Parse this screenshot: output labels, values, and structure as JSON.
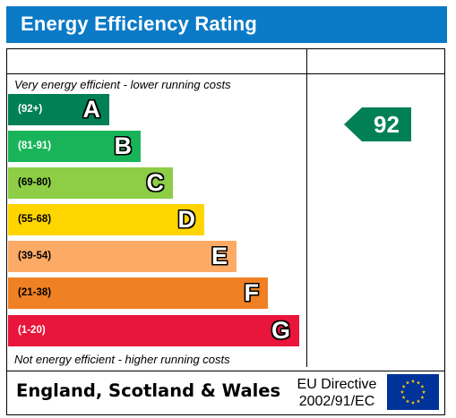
{
  "title": "Energy Efficiency Rating",
  "captions": {
    "top": "Very energy efficient - lower running costs",
    "bottom": "Not energy efficient - higher running costs"
  },
  "bands": [
    {
      "range": "(92+)",
      "letter": "A",
      "color": "#008054"
    },
    {
      "range": "(81-91)",
      "letter": "B",
      "color": "#19b459"
    },
    {
      "range": "(69-80)",
      "letter": "C",
      "color": "#8dce46"
    },
    {
      "range": "(55-68)",
      "letter": "D",
      "color": "#ffd500"
    },
    {
      "range": "(39-54)",
      "letter": "E",
      "color": "#fcaa65"
    },
    {
      "range": "(21-38)",
      "letter": "F",
      "color": "#ef8023"
    },
    {
      "range": "(1-20)",
      "letter": "G",
      "color": "#e9153b"
    }
  ],
  "current_rating": {
    "value": "92",
    "band": "A",
    "color": "#008054"
  },
  "footer": {
    "country": "England, Scotland & Wales",
    "directive_line1": "EU Directive",
    "directive_line2": "2002/91/EC"
  },
  "icons": {
    "flag": "eu-flag-icon"
  },
  "colors": {
    "title_bar": "#0a7ac7",
    "flag_blue": "#003399",
    "flag_stars": "#ffcc00"
  }
}
